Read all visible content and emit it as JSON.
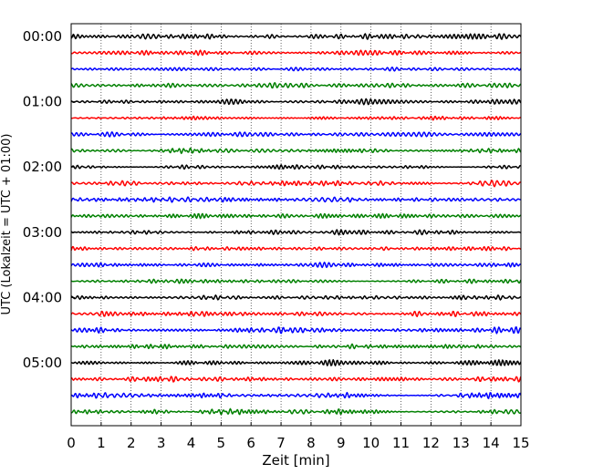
{
  "chart_data": {
    "type": "line",
    "title": "",
    "xlabel": "Zeit  [min]",
    "ylabel": "UTC (Lokalzeit = UTC + 01:00)",
    "xlim": [
      0,
      15
    ],
    "x_ticks": [
      "0",
      "1",
      "2",
      "3",
      "4",
      "5",
      "6",
      "7",
      "8",
      "9",
      "10",
      "11",
      "12",
      "13",
      "14",
      "15"
    ],
    "y_ticks": [
      "00:00",
      "01:00",
      "02:00",
      "03:00",
      "04:00",
      "05:00"
    ],
    "grid": "vertical dotted",
    "trace_interval_minutes": 15,
    "trace_count": 24,
    "trace_colors": [
      "#000000",
      "#ff0000",
      "#0000ff",
      "#008000"
    ]
  }
}
